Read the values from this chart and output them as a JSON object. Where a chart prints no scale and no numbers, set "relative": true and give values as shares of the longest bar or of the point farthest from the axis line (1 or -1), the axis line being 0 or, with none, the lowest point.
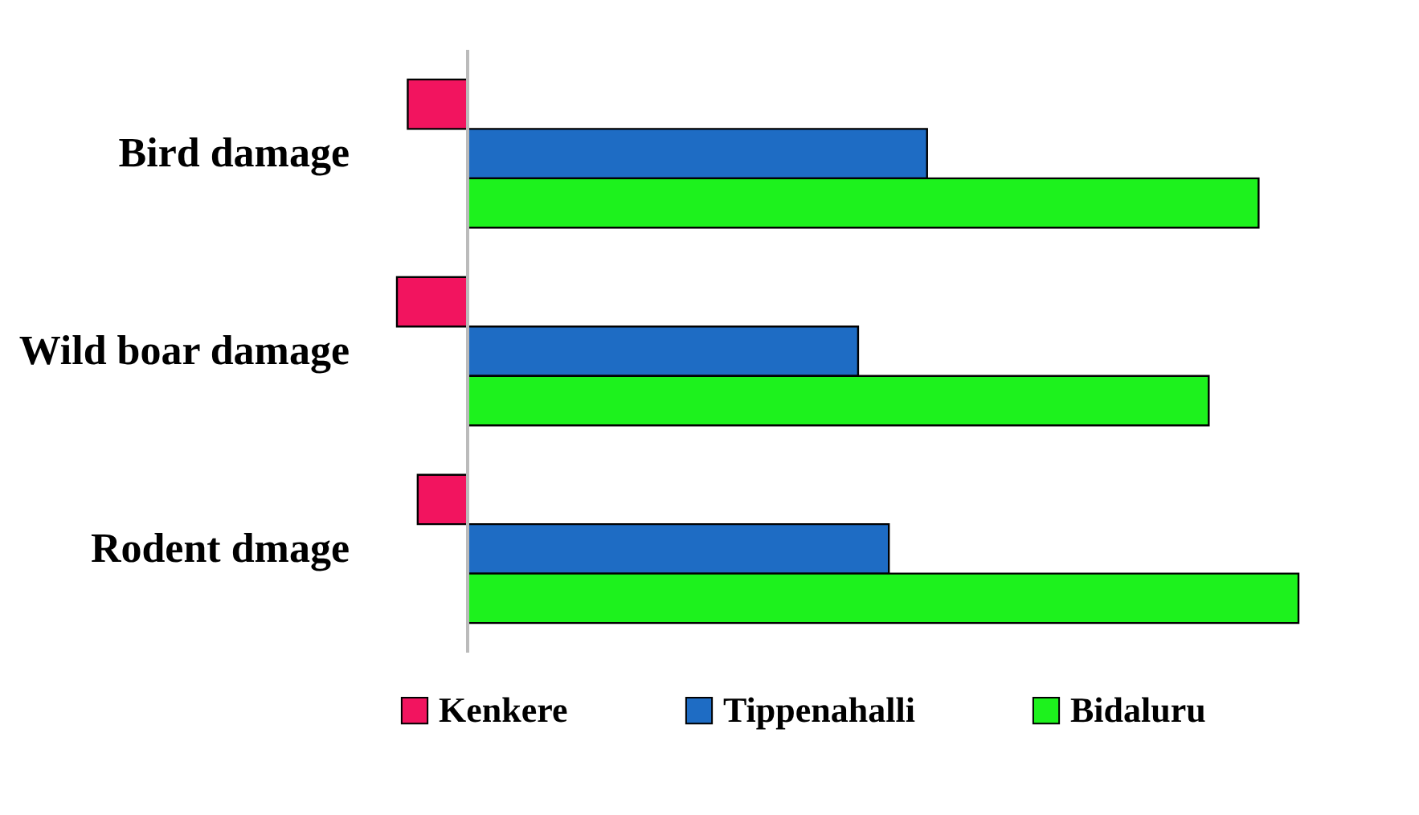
{
  "chart_data": {
    "type": "bar",
    "orientation": "horizontal",
    "relative": true,
    "legend": "bottom",
    "categories": [
      "Bird damage",
      "Wild boar damage",
      "Rodent dmage"
    ],
    "series": [
      {
        "name": "Kenkere",
        "color": "#f2145f",
        "values": [
          -0.072,
          -0.085,
          -0.06
        ]
      },
      {
        "name": "Tippenahalli",
        "color": "#1e6cc4",
        "values": [
          0.553,
          0.47,
          0.507
        ]
      },
      {
        "name": "Bidaluru",
        "color": "#1df21d",
        "values": [
          0.952,
          0.892,
          1
        ]
      }
    ]
  }
}
